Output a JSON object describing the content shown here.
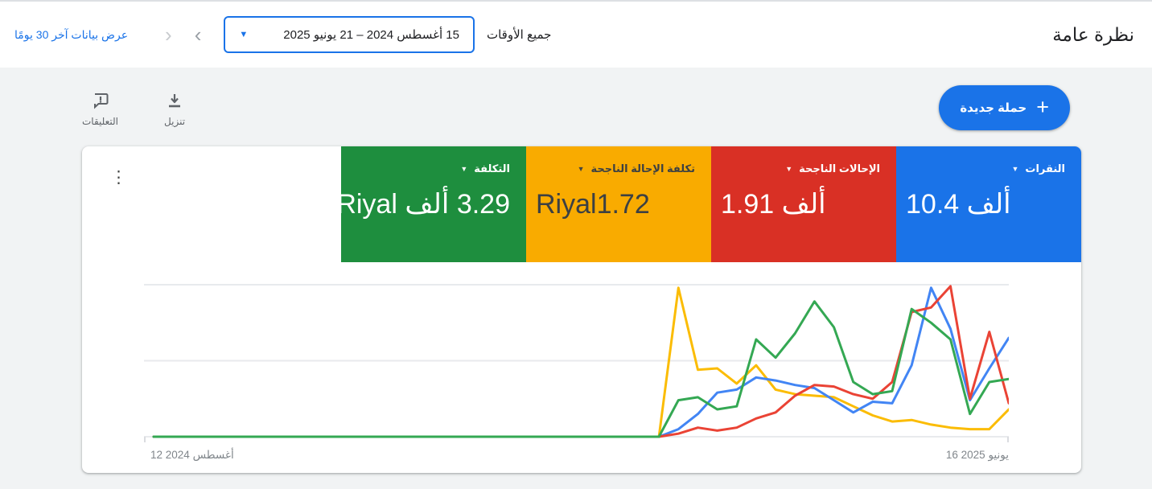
{
  "page": {
    "title": "نظرة عامة",
    "background": "#f1f3f4"
  },
  "toolbar": {
    "all_time_label": "جميع الأوقات",
    "date_range": "15 أغسطس 2024 – 21 يونيو 2025",
    "chevron_right": "›",
    "chevron_left": "‹",
    "last30_link": "عرض بيانات آخر 30 يومًا"
  },
  "actions": {
    "new_campaign": "حملة جديدة",
    "plus_icon": "+",
    "download": "تنزيل",
    "feedback": "التعليقات"
  },
  "icons": {
    "dropdown": "▼",
    "kebab": "⋮"
  },
  "scorecards": [
    {
      "id": "clicks",
      "label": "النقرات",
      "value": "10.4 ألف",
      "bg": "#1a73e8",
      "fg": "#ffffff"
    },
    {
      "id": "conversions",
      "label": "الإحالات الناجحة",
      "value": "1.91 ألف",
      "bg": "#d93025",
      "fg": "#ffffff"
    },
    {
      "id": "cost_per_conversion",
      "label": "تكلفة الإحالة الناجحة",
      "value": "Riyal1.72",
      "bg": "#f9ab00",
      "fg": "#3c4043"
    },
    {
      "id": "cost",
      "label": "التكلفة",
      "value": "3.29 ألف Riyal",
      "bg": "#1e8e3e",
      "fg": "#ffffff"
    }
  ],
  "chart_data": {
    "type": "line",
    "title": "",
    "xlabel": "",
    "ylabel": "",
    "x_axis": {
      "start_label": "12 أغسطس 2024",
      "end_label": "16 يونيو 2025",
      "unit": "week"
    },
    "x": [
      0,
      1,
      2,
      3,
      4,
      5,
      6,
      7,
      8,
      9,
      10,
      11,
      12,
      13,
      14,
      15,
      16,
      17,
      18,
      19,
      20,
      21,
      22,
      23,
      24,
      25,
      26,
      27,
      28,
      29,
      30,
      31,
      32,
      33,
      34,
      35,
      36,
      37,
      38,
      39,
      40,
      41,
      42,
      43,
      44
    ],
    "ylim": [
      0,
      100
    ],
    "units": "relative height (0 = baseline, 100 = top gridline); no numeric y-axis labels shown",
    "grid": "3 horizontal gridlines",
    "legend": "none (colors match scorecards)",
    "series": [
      {
        "id": "cost_per_conversion",
        "name": "تكلفة الإحالة الناجحة",
        "color": "#fbbc04",
        "values": [
          0,
          0,
          0,
          0,
          0,
          0,
          0,
          0,
          0,
          0,
          0,
          0,
          0,
          0,
          0,
          0,
          0,
          0,
          0,
          0,
          0,
          0,
          0,
          0,
          0,
          0,
          0,
          98,
          44,
          45,
          35,
          47,
          31,
          28,
          27,
          26,
          20,
          14,
          10,
          11,
          8,
          6,
          5,
          5,
          18
        ]
      },
      {
        "id": "clicks",
        "name": "النقرات",
        "color": "#4285f4",
        "values": [
          0,
          0,
          0,
          0,
          0,
          0,
          0,
          0,
          0,
          0,
          0,
          0,
          0,
          0,
          0,
          0,
          0,
          0,
          0,
          0,
          0,
          0,
          0,
          0,
          0,
          0,
          0,
          5,
          15,
          29,
          31,
          39,
          37,
          34,
          32,
          24,
          16,
          23,
          22,
          47,
          98,
          71,
          24,
          45,
          65
        ]
      },
      {
        "id": "conversions",
        "name": "الإحالات الناجحة",
        "color": "#ea4335",
        "values": [
          0,
          0,
          0,
          0,
          0,
          0,
          0,
          0,
          0,
          0,
          0,
          0,
          0,
          0,
          0,
          0,
          0,
          0,
          0,
          0,
          0,
          0,
          0,
          0,
          0,
          0,
          0,
          2,
          6,
          4,
          6,
          12,
          16,
          27,
          34,
          33,
          28,
          25,
          36,
          82,
          85,
          99,
          25,
          69,
          22
        ]
      },
      {
        "id": "cost",
        "name": "التكلفة",
        "color": "#34a853",
        "values": [
          0,
          0,
          0,
          0,
          0,
          0,
          0,
          0,
          0,
          0,
          0,
          0,
          0,
          0,
          0,
          0,
          0,
          0,
          0,
          0,
          0,
          0,
          0,
          0,
          0,
          0,
          0,
          24,
          26,
          18,
          20,
          64,
          52,
          68,
          89,
          72,
          36,
          28,
          30,
          84,
          75,
          64,
          15,
          36,
          38
        ]
      }
    ]
  }
}
